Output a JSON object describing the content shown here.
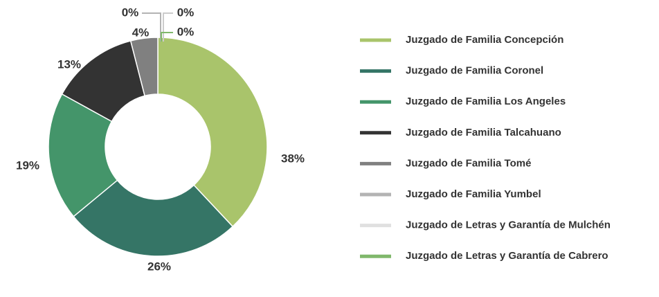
{
  "chart_data": {
    "type": "donut",
    "categories": [
      "Juzgado de Familia Concepción",
      "Juzgado de Familia Coronel",
      "Juzgado de Familia Los Angeles",
      "Juzgado de Familia Talcahuano",
      "Juzgado de Familia Tomé",
      "Juzgado de Familia Yumbel",
      "Juzgado de Letras y Garantía de Mulchén",
      "Juzgado de Letras y Garantía de Cabrero"
    ],
    "values": [
      38,
      26,
      19,
      13,
      4,
      0,
      0,
      0
    ],
    "value_labels": [
      "38%",
      "26%",
      "19%",
      "13%",
      "4%",
      "0%",
      "0%",
      "0%"
    ],
    "colors": [
      "#a9c46b",
      "#357566",
      "#44956a",
      "#333333",
      "#808080",
      "#b3b3b3",
      "#e0e0e0",
      "#80b86c"
    ],
    "legend": "right"
  }
}
